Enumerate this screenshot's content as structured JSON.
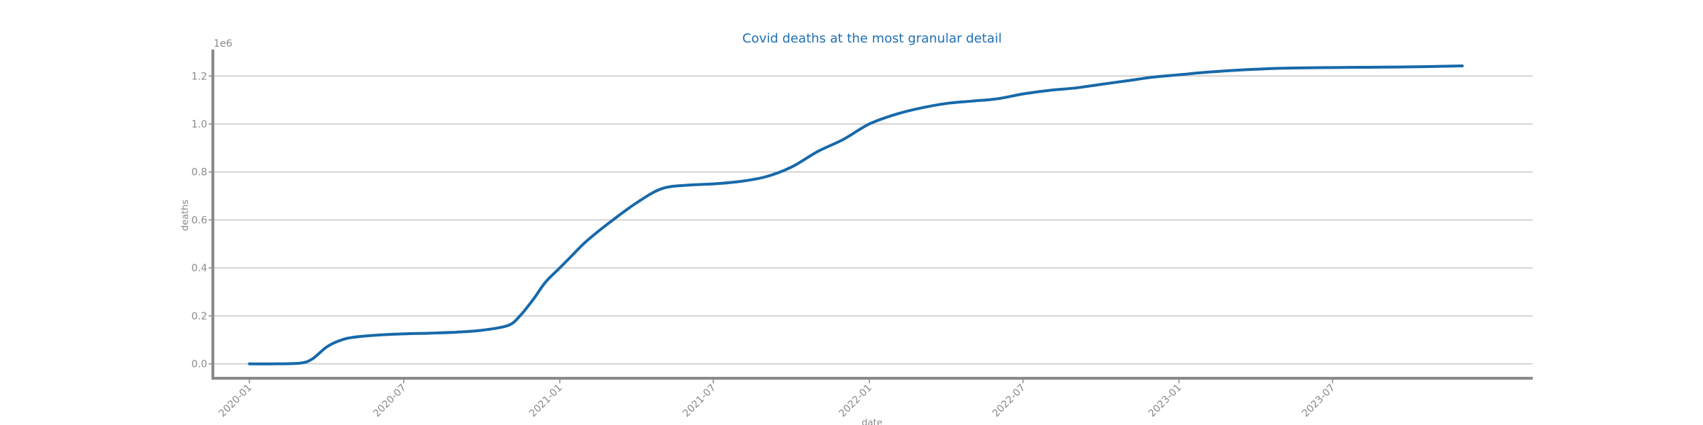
{
  "chart_data": {
    "type": "line",
    "title": "Covid deaths at the most granular detail",
    "xlabel": "date",
    "ylabel": "deaths",
    "y_scale_label": "1e6",
    "grid": "horizontal",
    "legend": "none",
    "xlim": [
      "2019-11-19",
      "2024-02-22"
    ],
    "ylim": [
      -60000,
      1310000
    ],
    "x_ticks": [
      "2020-01",
      "2020-07",
      "2021-01",
      "2021-07",
      "2022-01",
      "2022-07",
      "2023-01",
      "2023-07"
    ],
    "y_ticks": [
      {
        "value": 0,
        "label": "0.0"
      },
      {
        "value": 200000,
        "label": "0.2"
      },
      {
        "value": 400000,
        "label": "0.4"
      },
      {
        "value": 600000,
        "label": "0.6"
      },
      {
        "value": 800000,
        "label": "0.8"
      },
      {
        "value": 1000000,
        "label": "1.0"
      },
      {
        "value": 1200000,
        "label": "1.2"
      }
    ],
    "colors": {
      "series": "#1769aa",
      "title": "#1f6fb4",
      "axis": "#8a8a8a",
      "grid": "#c8c8c8"
    },
    "series": [
      {
        "x": [
          "2020-01-01",
          "2020-02-01",
          "2020-03-01",
          "2020-03-15",
          "2020-04-01",
          "2020-04-15",
          "2020-05-01",
          "2020-06-01",
          "2020-07-01",
          "2020-08-01",
          "2020-09-01",
          "2020-10-01",
          "2020-11-01",
          "2020-11-15",
          "2020-12-01",
          "2020-12-15",
          "2021-01-01",
          "2021-01-15",
          "2021-02-01",
          "2021-03-01",
          "2021-04-01",
          "2021-05-01",
          "2021-06-01",
          "2021-07-01",
          "2021-08-01",
          "2021-09-01",
          "2021-10-01",
          "2021-11-01",
          "2021-12-01",
          "2022-01-01",
          "2022-02-01",
          "2022-03-01",
          "2022-04-01",
          "2022-05-01",
          "2022-06-01",
          "2022-07-01",
          "2022-08-01",
          "2022-09-01",
          "2022-10-01",
          "2022-11-01",
          "2022-12-01",
          "2023-01-01",
          "2023-02-01",
          "2023-03-01",
          "2023-04-01",
          "2023-05-01",
          "2023-06-01",
          "2023-07-01",
          "2023-08-01",
          "2023-09-01",
          "2023-10-01",
          "2023-11-01",
          "2023-12-01"
        ],
        "y": [
          0,
          0,
          3000,
          20000,
          70000,
          95000,
          110000,
          120000,
          125000,
          128000,
          132000,
          140000,
          160000,
          200000,
          270000,
          340000,
          400000,
          450000,
          510000,
          590000,
          670000,
          730000,
          745000,
          750000,
          760000,
          780000,
          820000,
          885000,
          935000,
          1000000,
          1040000,
          1065000,
          1085000,
          1095000,
          1105000,
          1125000,
          1140000,
          1150000,
          1165000,
          1180000,
          1195000,
          1205000,
          1215000,
          1222000,
          1228000,
          1232000,
          1234000,
          1235000,
          1236000,
          1237000,
          1238000,
          1240000,
          1242000
        ]
      }
    ]
  }
}
